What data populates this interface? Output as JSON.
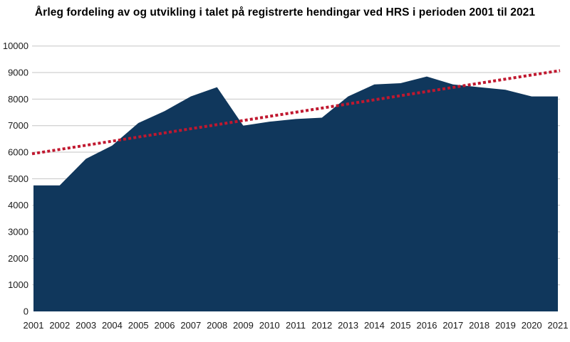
{
  "title": "Årleg fordeling av og utvikling i talet på registrerte hendingar ved HRS i perioden 2001 til 2021",
  "chart_data": {
    "type": "area",
    "title": "Årleg fordeling av og utvikling i talet på registrerte hendingar ved HRS i perioden 2001 til 2021",
    "x": [
      2001,
      2002,
      2003,
      2004,
      2005,
      2006,
      2007,
      2008,
      2009,
      2010,
      2011,
      2012,
      2013,
      2014,
      2015,
      2016,
      2017,
      2018,
      2019,
      2020,
      2021
    ],
    "series": [
      {
        "name": "area-series",
        "type": "area",
        "values": [
          4750,
          4750,
          5750,
          6250,
          7100,
          7550,
          8100,
          8450,
          7000,
          7150,
          7250,
          7300,
          8100,
          8550,
          8600,
          8850,
          8550,
          8450,
          8350,
          8100,
          8100
        ]
      }
    ],
    "trend_line": {
      "type": "dotted-line",
      "start_value": 5940,
      "end_value": 9075
    },
    "xlabel": "",
    "ylabel": "",
    "ylim": [
      0,
      10000
    ],
    "ytick_step": 1000,
    "yticks": [
      "0",
      "1000",
      "2000",
      "3000",
      "4000",
      "5000",
      "6000",
      "7000",
      "8000",
      "9000",
      "10000"
    ],
    "grid": true,
    "legend_position": "none",
    "colors": {
      "area_fill": "#10375c",
      "trend_line": "#c0182f",
      "gridline": "#c6c6c6",
      "tick_text": "#1a1a1a",
      "title_text": "#000000",
      "background": "#ffffff"
    }
  }
}
